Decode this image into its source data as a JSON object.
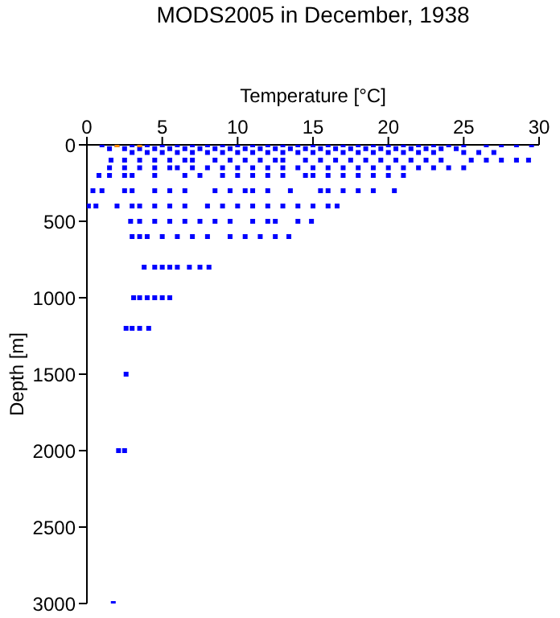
{
  "chart_data": {
    "type": "scatter",
    "title": "MODS2005 in December, 1938",
    "xlabel": "Temperature [°C]",
    "ylabel": "Depth [m]",
    "xlim": [
      0,
      30
    ],
    "xticks": [
      0,
      5,
      10,
      15,
      20,
      25,
      30
    ],
    "ylim": [
      3000,
      0
    ],
    "yticks": [
      0,
      500,
      1000,
      1500,
      2000,
      2500,
      3000
    ],
    "grid": false,
    "legend": false,
    "marker": "square",
    "series": [
      {
        "color": "#0000ff",
        "x": [
          1,
          2,
          3,
          4,
          5,
          6,
          7,
          8,
          9,
          10,
          11,
          12,
          13,
          14,
          15,
          16,
          17,
          18,
          19,
          20,
          21,
          22,
          23,
          24,
          25,
          26.5,
          27.5,
          28.5,
          29.5
        ],
        "values": [
          0,
          0,
          0,
          0,
          0,
          0,
          0,
          0,
          0,
          0,
          0,
          0,
          0,
          0,
          0,
          0,
          0,
          0,
          0,
          0,
          0,
          0,
          0,
          0,
          0,
          0,
          0,
          0,
          0
        ]
      },
      {
        "color": "#0000ff",
        "x": [
          1.5,
          2.5,
          3.5,
          4.5,
          5.5,
          6.5,
          7.5,
          8.5,
          9.5,
          10.5,
          11.5,
          12.5,
          13.5,
          14.5,
          15.5,
          16.5,
          17.5,
          18.5,
          19.5,
          20.5,
          21.5,
          22.5,
          23.5,
          24.5
        ],
        "values": [
          25,
          25,
          25,
          25,
          25,
          25,
          25,
          25,
          25,
          25,
          25,
          25,
          25,
          25,
          25,
          25,
          25,
          25,
          25,
          25,
          25,
          25,
          25,
          25
        ]
      },
      {
        "color": "#0000ff",
        "x": [
          3,
          4,
          5,
          6,
          7,
          8,
          9,
          10,
          11,
          12,
          13,
          14,
          15,
          16,
          17,
          18,
          19,
          20,
          21,
          22,
          23,
          25,
          26,
          27
        ],
        "values": [
          50,
          50,
          50,
          50,
          50,
          50,
          50,
          50,
          50,
          50,
          50,
          50,
          50,
          50,
          50,
          50,
          50,
          50,
          50,
          50,
          50,
          50,
          50,
          50
        ]
      },
      {
        "color": "#0000ff",
        "x": [
          1.6,
          2.5,
          3.5,
          4.5,
          5.5,
          6.5,
          7,
          8.5,
          9.5,
          10.5,
          11.5,
          12.5,
          13,
          14.5,
          15.5,
          16.5,
          17.5,
          18.5,
          19.5,
          20.5,
          21.5,
          22.5,
          23.5,
          25.5,
          26.5,
          27.5,
          28.5,
          29.3
        ],
        "values": [
          100,
          100,
          100,
          100,
          100,
          100,
          100,
          100,
          100,
          100,
          100,
          100,
          100,
          100,
          100,
          100,
          100,
          100,
          100,
          100,
          100,
          100,
          100,
          100,
          100,
          100,
          100,
          100
        ]
      },
      {
        "color": "#0000ff",
        "x": [
          1.5,
          2.5,
          3.5,
          4.5,
          5.5,
          6,
          7,
          8,
          9,
          10,
          11,
          12,
          13,
          14,
          15,
          16,
          17,
          18,
          19,
          20,
          21,
          22,
          23,
          24,
          25
        ],
        "values": [
          150,
          150,
          150,
          150,
          150,
          150,
          150,
          150,
          150,
          150,
          150,
          150,
          150,
          150,
          150,
          150,
          150,
          150,
          150,
          150,
          150,
          150,
          150,
          150,
          150
        ]
      },
      {
        "color": "#0000ff",
        "x": [
          0.8,
          1.5,
          2.5,
          3,
          4.5,
          6.5,
          7.5,
          9,
          10,
          11,
          12,
          13,
          14.5,
          15,
          16,
          17,
          18,
          19,
          20,
          21
        ],
        "values": [
          200,
          200,
          200,
          200,
          200,
          200,
          200,
          200,
          200,
          200,
          200,
          200,
          200,
          200,
          200,
          200,
          200,
          200,
          200,
          200
        ]
      },
      {
        "color": "#0000ff",
        "x": [
          0.4,
          1,
          2.5,
          3,
          4.5,
          5.5,
          6.5,
          8.5,
          9.5,
          10.5,
          11,
          12,
          13.5,
          15.5,
          16,
          17,
          18,
          19,
          20.4
        ],
        "values": [
          300,
          300,
          300,
          300,
          300,
          300,
          300,
          300,
          300,
          300,
          300,
          300,
          300,
          300,
          300,
          300,
          300,
          300,
          300
        ]
      },
      {
        "color": "#0000ff",
        "x": [
          0.1,
          0.6,
          2,
          3,
          3.5,
          4.5,
          5.5,
          6.5,
          8,
          9,
          10,
          11,
          12,
          13,
          14,
          15,
          16,
          16.6
        ],
        "values": [
          400,
          400,
          400,
          400,
          400,
          400,
          400,
          400,
          400,
          400,
          400,
          400,
          400,
          400,
          400,
          400,
          400,
          400
        ]
      },
      {
        "color": "#0000ff",
        "x": [
          2.9,
          3.5,
          4.5,
          5.5,
          6.5,
          7.5,
          8.5,
          9.5,
          11,
          12,
          12.5,
          14,
          14.9
        ],
        "values": [
          500,
          500,
          500,
          500,
          500,
          500,
          500,
          500,
          500,
          500,
          500,
          500,
          500
        ]
      },
      {
        "color": "#0000ff",
        "x": [
          3,
          3.5,
          4,
          5,
          6,
          7,
          8,
          9.5,
          10.5,
          11.5,
          12.5,
          13.4
        ],
        "values": [
          600,
          600,
          600,
          600,
          600,
          600,
          600,
          600,
          600,
          600,
          600,
          600
        ]
      },
      {
        "color": "#0000ff",
        "x": [
          3.8,
          4.5,
          5,
          5.5,
          6,
          6.8,
          7.5,
          8.1
        ],
        "values": [
          800,
          800,
          800,
          800,
          800,
          800,
          800,
          800
        ]
      },
      {
        "color": "#0000ff",
        "x": [
          3.1,
          3.5,
          4,
          4.5,
          5,
          5.5
        ],
        "values": [
          1000,
          1000,
          1000,
          1000,
          1000,
          1000
        ]
      },
      {
        "color": "#0000ff",
        "x": [
          2.6,
          3,
          3.5,
          4.1
        ],
        "values": [
          1200,
          1200,
          1200,
          1200
        ]
      },
      {
        "color": "#0000ff",
        "x": [
          2.6
        ],
        "values": [
          1500
        ]
      },
      {
        "color": "#0000ff",
        "x": [
          2.1,
          2.5
        ],
        "values": [
          2000,
          2000
        ]
      },
      {
        "color": "#0000ff",
        "x": [
          1.75
        ],
        "values": [
          3000
        ]
      },
      {
        "color": "#ff8c00",
        "x": [
          2,
          3.5
        ],
        "values": [
          0,
          0
        ]
      }
    ]
  }
}
